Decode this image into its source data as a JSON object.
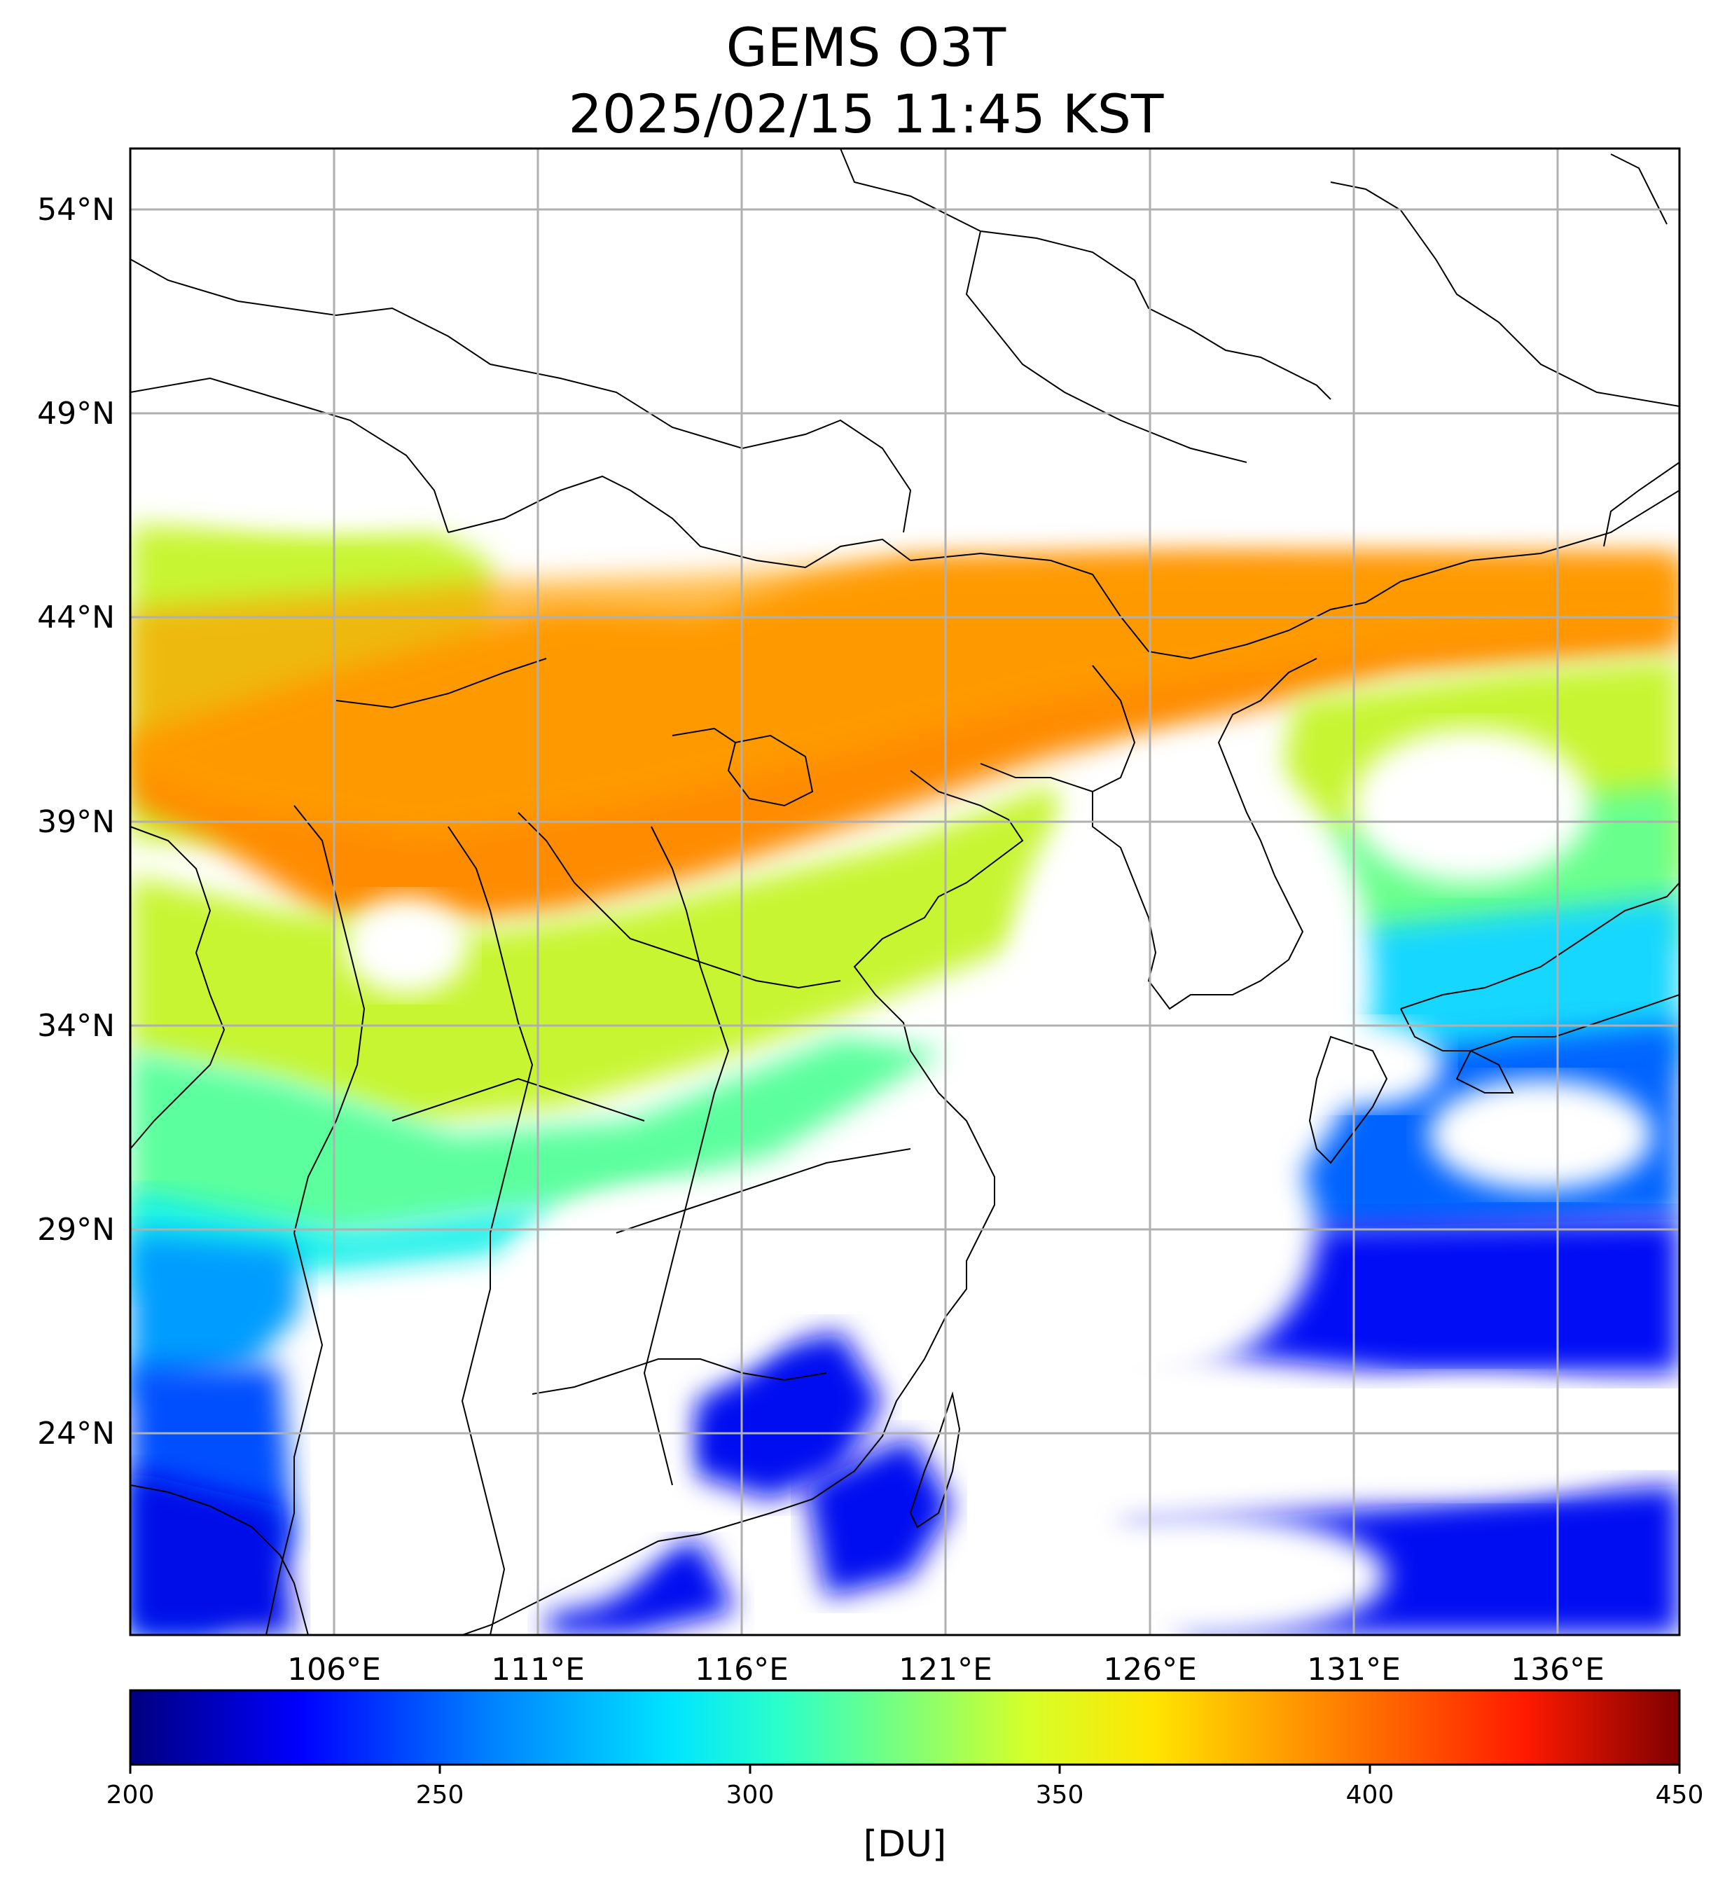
{
  "title": "GEMS O3T",
  "subtitle": "2025/02/15 11:45 KST",
  "map": {
    "lat_ticks": [
      "54°N",
      "49°N",
      "44°N",
      "39°N",
      "34°N",
      "29°N",
      "24°N"
    ],
    "lon_ticks": [
      "106°E",
      "111°E",
      "116°E",
      "121°E",
      "126°E",
      "131°E",
      "136°E"
    ],
    "lat_range": [
      19.5,
      55.5
    ],
    "lon_range": [
      101,
      139
    ]
  },
  "colorbar": {
    "ticks": [
      "200",
      "250",
      "300",
      "350",
      "400",
      "450"
    ],
    "range": [
      200,
      450
    ],
    "unit": "[DU]",
    "colormap": "jet",
    "stops": [
      "#00007f",
      "#0000ff",
      "#007fff",
      "#00e5ff",
      "#2cffc9",
      "#7dff7a",
      "#d6ff29",
      "#ffe500",
      "#ff8000",
      "#ff1a00",
      "#7f0000"
    ]
  }
}
